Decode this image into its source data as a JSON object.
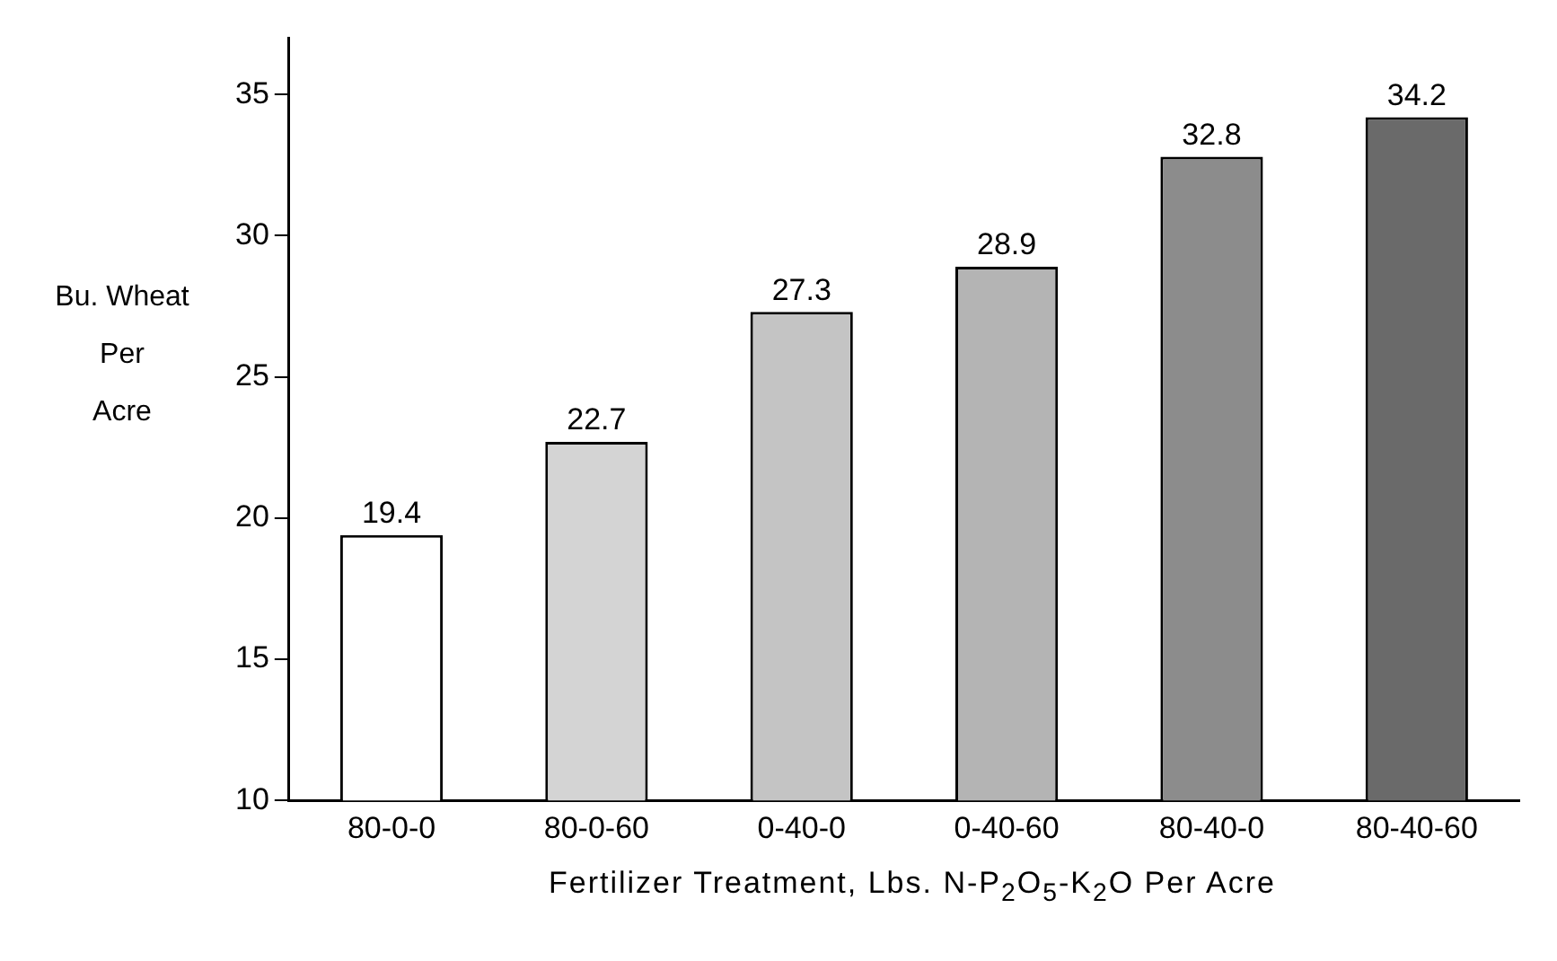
{
  "chart_data": {
    "type": "bar",
    "ylabel": "Bu. Wheat\nPer\nAcre",
    "xlabel": "Fertilizer Treatment, Lbs. N-P$_{2}$O$_{5}$-K$_{2}$O Per Acre",
    "categories": [
      "80-0-0",
      "80-0-60",
      "0-40-0",
      "0-40-60",
      "80-40-0",
      "80-40-60"
    ],
    "values": [
      19.4,
      22.7,
      27.3,
      28.9,
      32.8,
      34.2
    ],
    "colors": [
      "#ffffff",
      "#d4d4d4",
      "#c4c4c4",
      "#b4b4b4",
      "#8c8c8c",
      "#6a6a6a"
    ],
    "ylim": [
      10,
      37
    ],
    "yticks": [
      10,
      15,
      20,
      25,
      30,
      35
    ],
    "grid": false,
    "legend": false,
    "data_labels": true
  }
}
